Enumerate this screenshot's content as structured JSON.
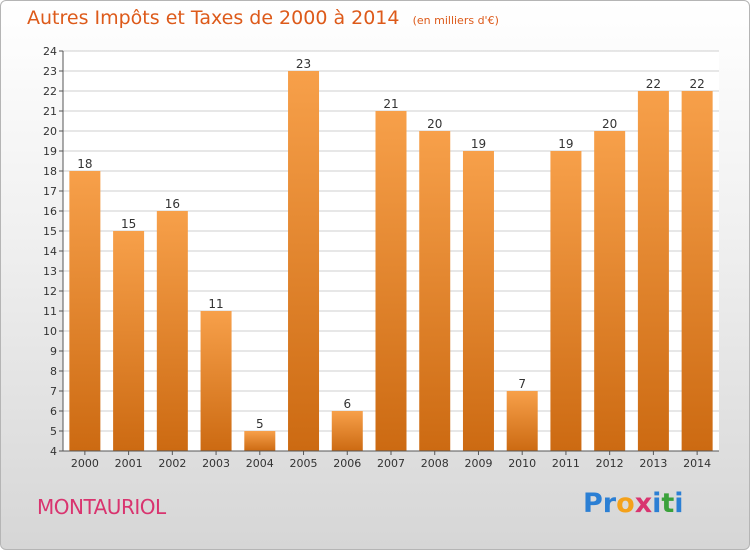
{
  "header": {
    "title": "Autres Impôts et Taxes de 2000 à 2014",
    "unit": "(en milliers d'€)"
  },
  "footer": {
    "commune": "MONTAURIOL",
    "brand": "Proxiti",
    "brand_letters": [
      "P",
      "r",
      "o",
      "x",
      "i",
      "t",
      "i"
    ],
    "brand_colors": [
      "#2b7fd4",
      "#2b7fd4",
      "#f4a11a",
      "#d9346f",
      "#2b7fd4",
      "#3aa13a",
      "#2b7fd4"
    ]
  },
  "colors": {
    "bar_light": "#f7a04a",
    "bar_dark": "#cc6a12",
    "title": "#dd5a1a",
    "grid": "#cfcfcf"
  },
  "chart_data": {
    "type": "bar",
    "title": "Autres Impôts et Taxes de 2000 à 2014",
    "subtitle": "(en milliers d'€)",
    "categories": [
      "2000",
      "2001",
      "2002",
      "2003",
      "2004",
      "2005",
      "2006",
      "2007",
      "2008",
      "2009",
      "2010",
      "2011",
      "2012",
      "2013",
      "2014"
    ],
    "values": [
      18,
      15,
      16,
      11,
      5,
      23,
      6,
      21,
      20,
      19,
      7,
      19,
      20,
      22,
      22
    ],
    "ylim": [
      4,
      24
    ],
    "yticks": [
      4,
      5,
      6,
      7,
      8,
      9,
      10,
      11,
      12,
      13,
      14,
      15,
      16,
      17,
      18,
      19,
      20,
      21,
      22,
      23,
      24
    ],
    "grid": true,
    "data_labels": true
  }
}
